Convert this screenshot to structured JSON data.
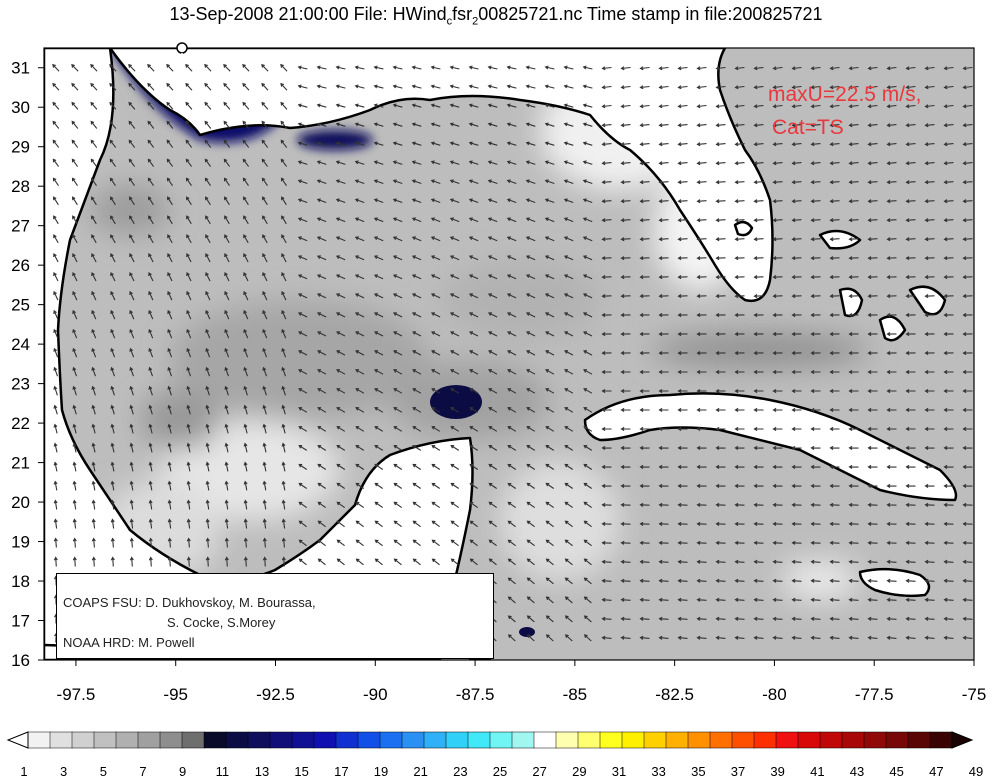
{
  "title": {
    "prefix": "13-Sep-2008 21:00:00 File: HWind",
    "subscript": "c",
    "suffix": "fsr",
    "subscript2": "2",
    "tail": "00825721.nc Time stamp in file:200825721"
  },
  "annotation": {
    "line1": "maxU=22.5 m/s,",
    "line2": "Cat=TS",
    "color": "#e8383c"
  },
  "credits": {
    "line1": "COAPS FSU: D. Dukhovskoy, M. Bourassa,",
    "line2": "S. Cocke, S.Morey",
    "line3": "NOAA HRD:  M. Powell"
  },
  "axes": {
    "x_ticks": [
      "-97.5",
      "-95",
      "-92.5",
      "-90",
      "-87.5",
      "-85",
      "-82.5",
      "-80",
      "-77.5",
      "-75"
    ],
    "x_values": [
      -97.5,
      -95,
      -92.5,
      -90,
      -87.5,
      -85,
      -82.5,
      -80,
      -77.5,
      -75
    ],
    "x_range": [
      -98.3,
      -75
    ],
    "y_ticks": [
      "31",
      "30",
      "29",
      "28",
      "27",
      "26",
      "25",
      "24",
      "23",
      "22",
      "21",
      "20",
      "19",
      "18",
      "17",
      "16"
    ],
    "y_values": [
      31,
      30,
      29,
      28,
      27,
      26,
      25,
      24,
      23,
      22,
      21,
      20,
      19,
      18,
      17,
      16
    ],
    "y_range": [
      16,
      31.5
    ]
  },
  "colorbar": {
    "labels": [
      "1",
      "3",
      "5",
      "7",
      "9",
      "11",
      "13",
      "15",
      "17",
      "19",
      "21",
      "23",
      "25",
      "27",
      "29",
      "31",
      "33",
      "35",
      "37",
      "39",
      "41",
      "43",
      "45",
      "47",
      "49"
    ],
    "colors": [
      "#f2f2f2",
      "#e0e0e0",
      "#d0d0d0",
      "#c0c0c0",
      "#b0b0b0",
      "#a0a0a0",
      "#8e8e8e",
      "#6e6e6e",
      "#0a0a2a",
      "#0c0c44",
      "#0e0e5c",
      "#101078",
      "#101094",
      "#1010b0",
      "#1030d0",
      "#1050e8",
      "#1a70f0",
      "#2a90f4",
      "#30b0f6",
      "#30d0f8",
      "#40e8f8",
      "#70f4f4",
      "#a0f6f0",
      "#ffffff",
      "#ffffb0",
      "#ffff70",
      "#ffff20",
      "#fff000",
      "#ffd000",
      "#ffb000",
      "#ff9000",
      "#ff7000",
      "#ff5000",
      "#ff3000",
      "#f01010",
      "#d80808",
      "#c00808",
      "#a80808",
      "#900808",
      "#780808",
      "#5a0505",
      "#3a0303"
    ]
  },
  "legend_colors": {
    "land_fill": "#ffffff",
    "ocean_light": "#c8c8c8",
    "ocean_mid": "#b0b0b0",
    "ocean_dark": "#8e8e8e",
    "eye": "#0c0c44",
    "high_wind": "#1030d0"
  }
}
